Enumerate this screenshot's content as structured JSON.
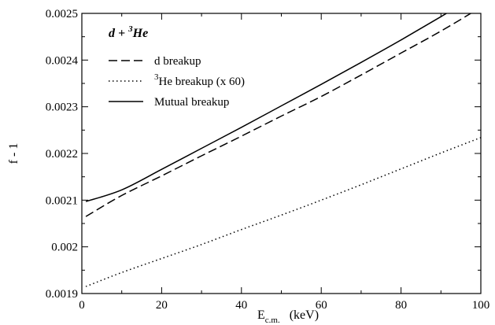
{
  "chart_data": {
    "type": "line",
    "title": "",
    "annotation": {
      "base": "d + ",
      "sup": "3",
      "tail": "He"
    },
    "xlabel": {
      "base": "E",
      "sub": "c.m.",
      "units": "(keV)"
    },
    "ylabel": "f - 1",
    "xlim": [
      0,
      100
    ],
    "ylim": [
      0.0019,
      0.0025
    ],
    "xticks": [
      0,
      20,
      40,
      60,
      80,
      100
    ],
    "yticks": [
      0.0019,
      0.002,
      0.0021,
      0.0022,
      0.0023,
      0.0024,
      0.0025
    ],
    "xtick_labels": [
      "0",
      "20",
      "40",
      "60",
      "80",
      "100"
    ],
    "ytick_labels": [
      "0.0019",
      "0.002",
      "0.0021",
      "0.0022",
      "0.0023",
      "0.0024",
      "0.0025"
    ],
    "grid": false,
    "legend_position": "top-left",
    "series": [
      {
        "name": "d breakup",
        "legend": {
          "sup": "",
          "text": "d breakup"
        },
        "style": "dashed",
        "color": "#000000",
        "x": [
          1,
          10,
          20,
          30,
          40,
          50,
          60,
          70,
          80,
          90,
          100
        ],
        "y": [
          0.002065,
          0.00211,
          0.002152,
          0.002195,
          0.002237,
          0.00228,
          0.002322,
          0.002368,
          0.002415,
          0.002462,
          0.002513
        ]
      },
      {
        "name": "3He breakup (x 60)",
        "legend": {
          "sup": "3",
          "text": "He breakup (x 60)"
        },
        "style": "dotted",
        "color": "#000000",
        "x": [
          1,
          10,
          20,
          30,
          40,
          50,
          60,
          70,
          80,
          90,
          100
        ],
        "y": [
          0.001915,
          0.001945,
          0.001975,
          0.002005,
          0.002037,
          0.002068,
          0.0021,
          0.002133,
          0.002167,
          0.002201,
          0.002234
        ]
      },
      {
        "name": "Mutual breakup",
        "legend": {
          "sup": "",
          "text": "Mutual breakup"
        },
        "style": "solid",
        "color": "#000000",
        "x": [
          1,
          10,
          20,
          30,
          40,
          50,
          60,
          70,
          80,
          90,
          100
        ],
        "y": [
          0.002097,
          0.002122,
          0.002166,
          0.002211,
          0.002256,
          0.002302,
          0.002348,
          0.002395,
          0.002443,
          0.002493,
          0.002545
        ]
      }
    ]
  }
}
